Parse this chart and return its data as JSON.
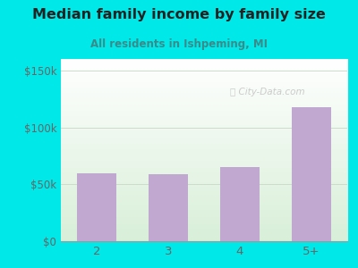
{
  "title": "Median family income by family size",
  "subtitle": "All residents in Ishpeming, MI",
  "categories": [
    "2",
    "3",
    "4",
    "5+"
  ],
  "values": [
    60000,
    59000,
    65000,
    118000
  ],
  "bar_color": "#c0a8d0",
  "outer_bg": "#00e8e8",
  "plot_bg_topleft": "#d8eedd",
  "plot_bg_bottomright": "#f0f8f0",
  "title_color": "#222222",
  "subtitle_color": "#3a8a8a",
  "tick_label_color": "#666666",
  "yticks": [
    0,
    50000,
    100000,
    150000
  ],
  "ytick_labels": [
    "$0",
    "$50k",
    "$100k",
    "$150k"
  ],
  "ylim": [
    0,
    160000
  ],
  "watermark": "City-Data.com",
  "watermark_color": "#bbbbbb",
  "grid_color": "#ccddcc"
}
